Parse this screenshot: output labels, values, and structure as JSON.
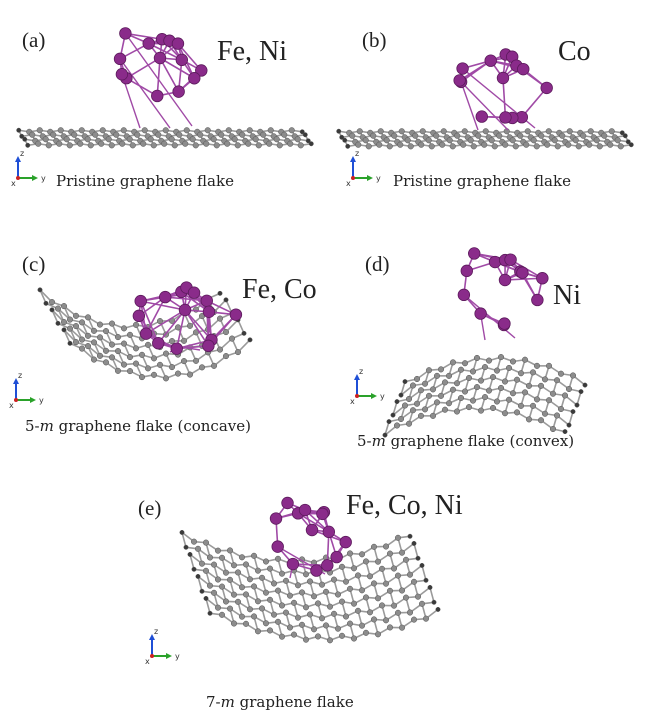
{
  "panels": [
    {
      "label": "(a)",
      "metals": "Fe, Ni",
      "caption": "Pristine graphene flake"
    },
    {
      "label": "(b)",
      "metals": "Co",
      "caption": "Pristine graphene flake"
    },
    {
      "label": "(c)",
      "metals": "Fe, Co",
      "caption_prefix": "5-",
      "caption_italic": "m",
      "caption_suffix": " graphene flake (concave)"
    },
    {
      "label": "(d)",
      "metals": "Ni",
      "caption_prefix": "5-",
      "caption_italic": "m",
      "caption_suffix": " graphene flake (convex)"
    },
    {
      "label": "(e)",
      "metals": "Fe, Co, Ni",
      "caption_prefix": "7-",
      "caption_italic": "m",
      "caption_suffix": " graphene flake"
    }
  ],
  "axis_labels": {
    "z": "z",
    "y": "y",
    "x": "x"
  },
  "colors": {
    "metal_atom": "#8a2b8a",
    "metal_bond": "#a04aa6",
    "carbon_atom": "#8c8c8c",
    "carbon_bond": "#9a9a9a",
    "hydrogen": "#3a3a3a",
    "axis_z": "#1f4fd6",
    "axis_y": "#2aa22a",
    "axis_x": "#cc2222"
  }
}
